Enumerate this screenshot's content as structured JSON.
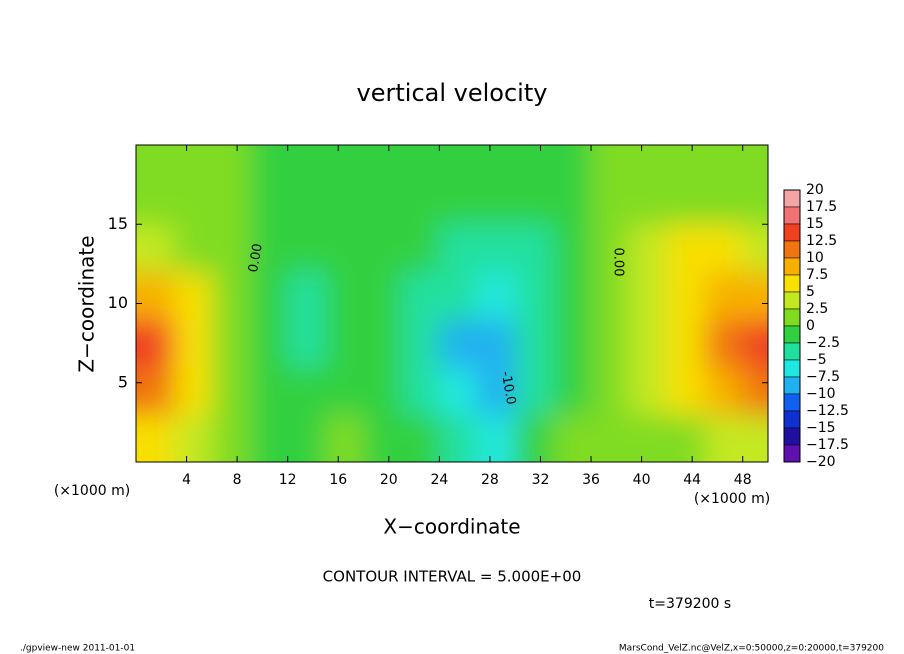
{
  "chart_data": {
    "type": "heatmap",
    "title": "vertical velocity",
    "xlabel": "X−coordinate",
    "ylabel": "Z−coordinate",
    "x_unit": "(×1000 m)",
    "y_unit": "(×1000 m)",
    "xlim": [
      0,
      50
    ],
    "ylim": [
      0,
      20
    ],
    "xticks": [
      4,
      8,
      12,
      16,
      20,
      24,
      28,
      32,
      36,
      40,
      44,
      48
    ],
    "yticks": [
      5,
      10,
      15
    ],
    "x": [
      1.5,
      4.5,
      7.5,
      10.5,
      13.5,
      16.5,
      19.5,
      22.5,
      25.5,
      28.5,
      31.5,
      34.5,
      37.5,
      40.5,
      43.5,
      46.5,
      49.5
    ],
    "y": [
      1.5,
      4.5,
      7.5,
      10.5,
      13.5,
      16.5,
      19.5
    ],
    "z": [
      [
        6,
        4,
        1,
        -1,
        -1,
        0,
        -1,
        -2,
        -3,
        -6,
        -2,
        0,
        1,
        1,
        2,
        3,
        4
      ],
      [
        10,
        6,
        2,
        -1,
        -2,
        -2,
        -2,
        -4,
        -6,
        -9,
        -3,
        -1,
        1,
        3,
        5,
        8,
        11
      ],
      [
        13,
        7,
        2,
        -1,
        -3,
        -2,
        -2,
        -4,
        -8,
        -9,
        -5,
        -2,
        0,
        4,
        7,
        10,
        13
      ],
      [
        9,
        5,
        1,
        -1,
        -3,
        -2,
        -2,
        -3,
        -4,
        -6,
        -4,
        -2,
        0,
        4,
        7,
        8,
        9
      ],
      [
        3,
        2,
        0,
        -1,
        -2,
        -2,
        -2,
        -2,
        -3,
        -4,
        -3,
        -2,
        0,
        3,
        6,
        5,
        4
      ],
      [
        0,
        0,
        0,
        -1,
        -1,
        -1,
        -1,
        -1,
        -1,
        -2,
        -2,
        -1,
        0,
        1,
        2,
        1,
        1
      ],
      [
        0,
        0,
        0,
        -1,
        -1,
        -1,
        -1,
        -1,
        -1,
        -1,
        -1,
        -1,
        0,
        0,
        0,
        0,
        0
      ]
    ],
    "colorbar": {
      "levels": [
        20,
        17.5,
        15,
        12.5,
        10,
        7.5,
        5,
        2.5,
        0,
        {
          "value": -2.5,
          "label": "−2.5"
        },
        {
          "value": -5,
          "label": "−5"
        },
        {
          "value": -7.5,
          "label": "−7.5"
        },
        {
          "value": -10,
          "label": "−10"
        },
        {
          "value": -12.5,
          "label": "−12.5"
        },
        {
          "value": -15,
          "label": "−15"
        },
        {
          "value": -17.5,
          "label": "−17.5"
        },
        {
          "value": -20,
          "label": "−20"
        }
      ],
      "colors": [
        "#f4a4a4",
        "#f07272",
        "#f04020",
        "#f07410",
        "#f8b000",
        "#f8e000",
        "#c4e820",
        "#80dc20",
        "#30d040",
        "#20e0a0",
        "#20e8e0",
        "#20b0f0",
        "#1060f0",
        "#1030d0",
        "#2010a0",
        "#6010b0"
      ]
    },
    "contour_labels": [
      "0.00",
      "0.00",
      "-10.0"
    ],
    "contour_interval": "CONTOUR INTERVAL = 5.000E+00",
    "time_label": "t=379200 s",
    "footer_left": "./gpview-new  2011-01-01",
    "footer_right": "MarsCond_VelZ.nc@VelZ,x=0:50000,z=0:20000,t=379200"
  }
}
